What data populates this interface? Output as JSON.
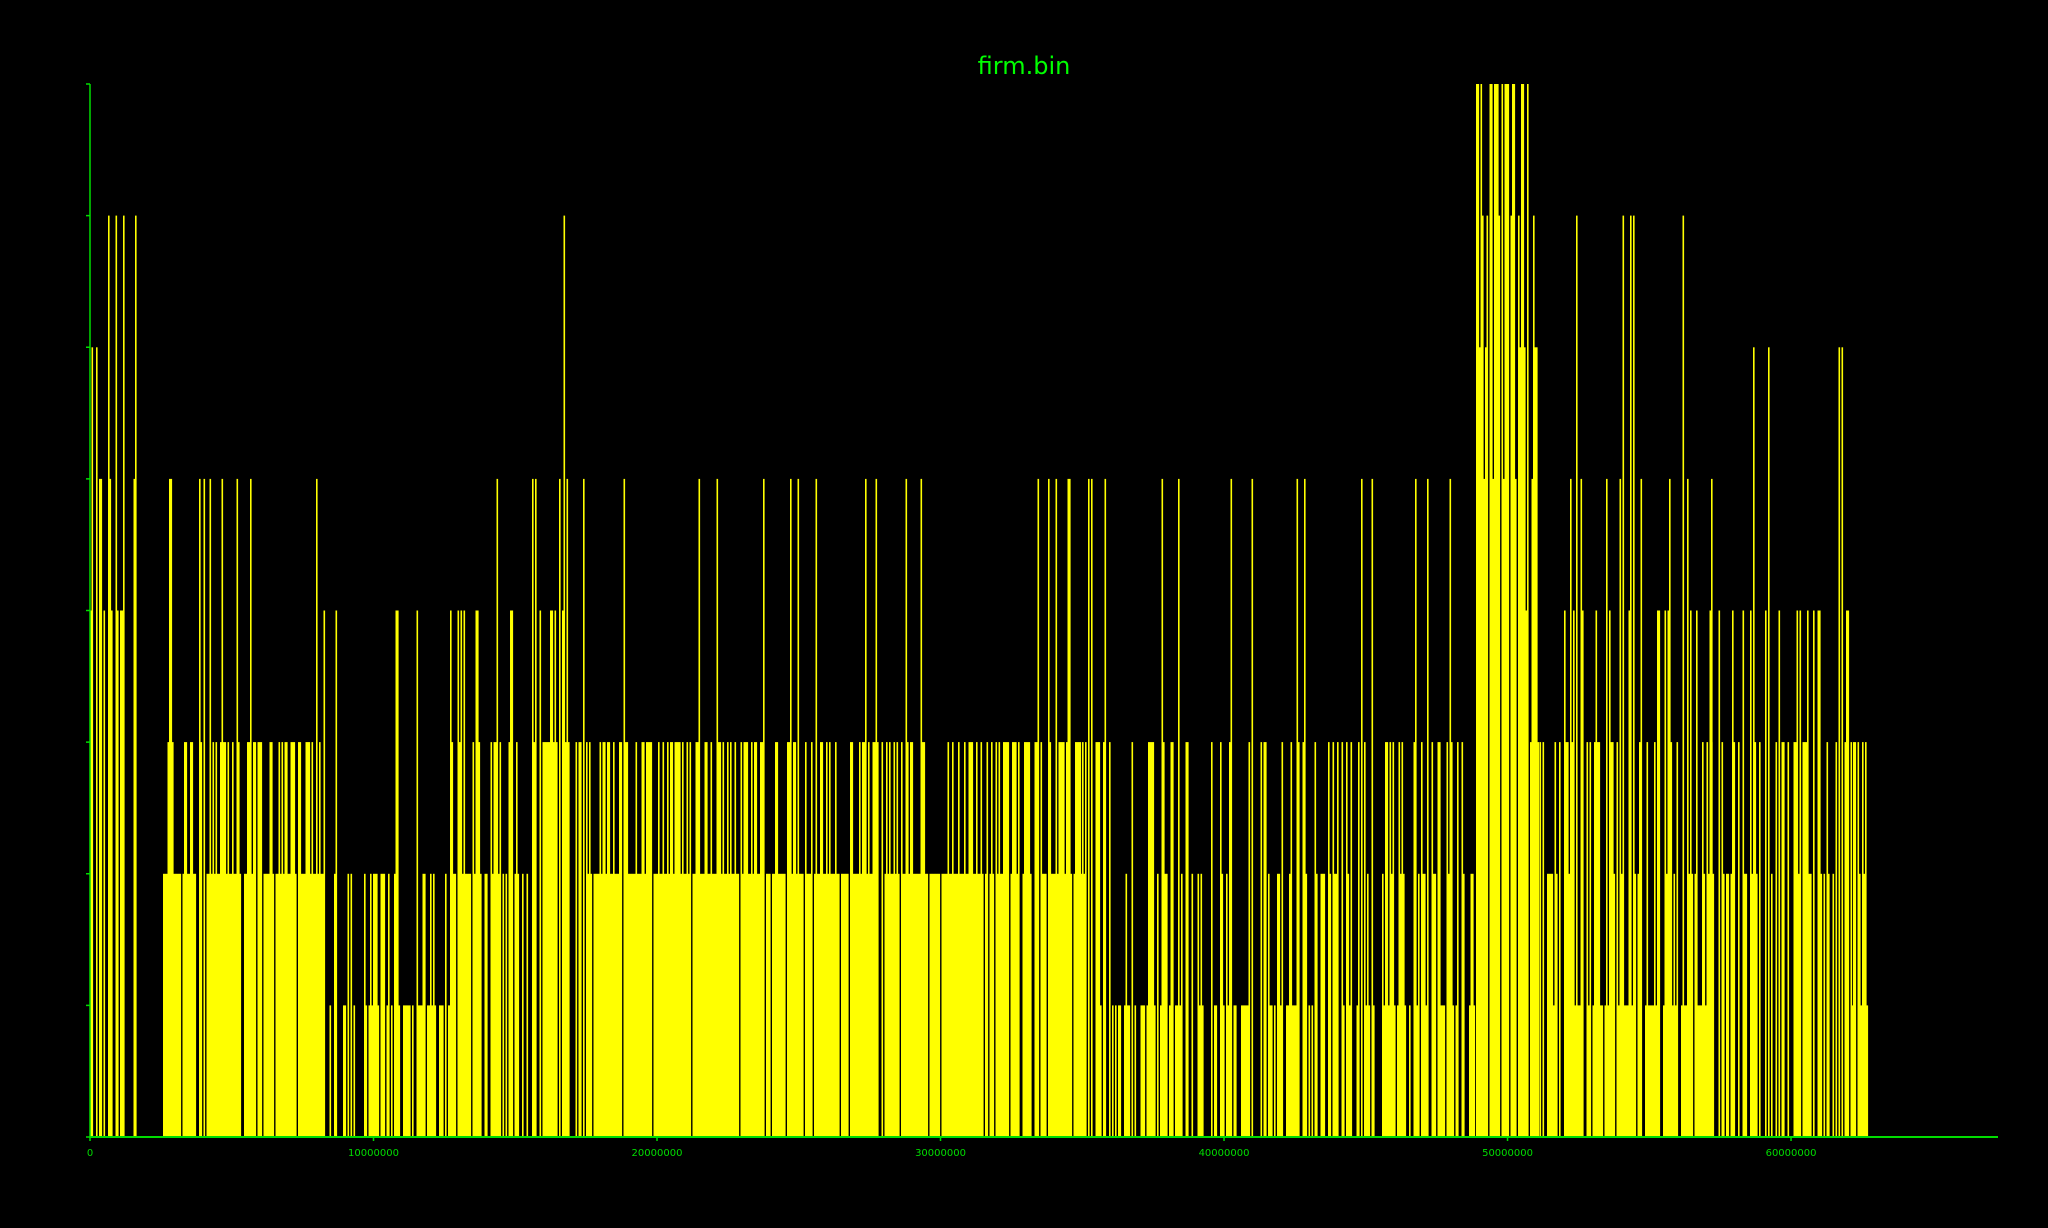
{
  "chart_data": {
    "type": "bar",
    "title": "firm.bin",
    "xlabel": "",
    "ylabel": "",
    "xlim": [
      0,
      67300000
    ],
    "ylim": [
      0,
      8
    ],
    "x_ticks": [
      0,
      10000000,
      20000000,
      30000000,
      40000000,
      50000000,
      60000000
    ],
    "x_tick_labels": [
      "0",
      "10000000",
      "20000000",
      "30000000",
      "40000000",
      "50000000",
      "60000000"
    ],
    "y_ticks": [
      0,
      1,
      2,
      3,
      4,
      5,
      6,
      7,
      8
    ],
    "grid": false,
    "legend": "none",
    "colors": {
      "background": "#000000",
      "bars": "#ffff00",
      "axes": "#00dd00",
      "title": "#00ff00"
    },
    "segments": [
      {
        "x_start": 0,
        "x_end": 1700000,
        "low": 4,
        "high": 7,
        "high_max": 8,
        "fill": "sparse"
      },
      {
        "x_start": 1700000,
        "x_end": 2600000,
        "low": 0,
        "high": 0,
        "high_max": 0,
        "fill": "empty"
      },
      {
        "x_start": 2600000,
        "x_end": 8200000,
        "low": 2,
        "high": 3,
        "high_max": 5,
        "fill": "dense"
      },
      {
        "x_start": 8200000,
        "x_end": 12700000,
        "low": 1,
        "high": 2,
        "high_max": 4,
        "fill": "medium"
      },
      {
        "x_start": 12700000,
        "x_end": 15600000,
        "low": 2,
        "high": 4,
        "high_max": 5,
        "fill": "medium"
      },
      {
        "x_start": 15600000,
        "x_end": 17500000,
        "low": 3,
        "high": 5,
        "high_max": 7,
        "fill": "medium"
      },
      {
        "x_start": 17500000,
        "x_end": 35000000,
        "low": 2,
        "high": 3,
        "high_max": 5,
        "fill": "dense"
      },
      {
        "x_start": 35000000,
        "x_end": 48900000,
        "low": 1,
        "high": 3,
        "high_max": 5,
        "fill": "medium"
      },
      {
        "x_start": 48900000,
        "x_end": 50600000,
        "low": 5,
        "high": 8,
        "high_max": 8,
        "fill": "dense"
      },
      {
        "x_start": 50600000,
        "x_end": 51100000,
        "low": 3,
        "high": 7,
        "high_max": 8,
        "fill": "dense"
      },
      {
        "x_start": 51100000,
        "x_end": 52000000,
        "low": 1,
        "high": 3,
        "high_max": 7,
        "fill": "medium"
      },
      {
        "x_start": 52000000,
        "x_end": 57200000,
        "low": 1,
        "high": 5,
        "high_max": 7,
        "fill": "dense"
      },
      {
        "x_start": 57200000,
        "x_end": 62100000,
        "low": 2,
        "high": 4,
        "high_max": 6,
        "fill": "medium"
      },
      {
        "x_start": 62100000,
        "x_end": 62700000,
        "low": 1,
        "high": 3,
        "high_max": 3,
        "fill": "dense"
      },
      {
        "x_start": 62700000,
        "x_end": 67300000,
        "low": 0,
        "high": 0,
        "high_max": 0,
        "fill": "empty"
      }
    ]
  }
}
